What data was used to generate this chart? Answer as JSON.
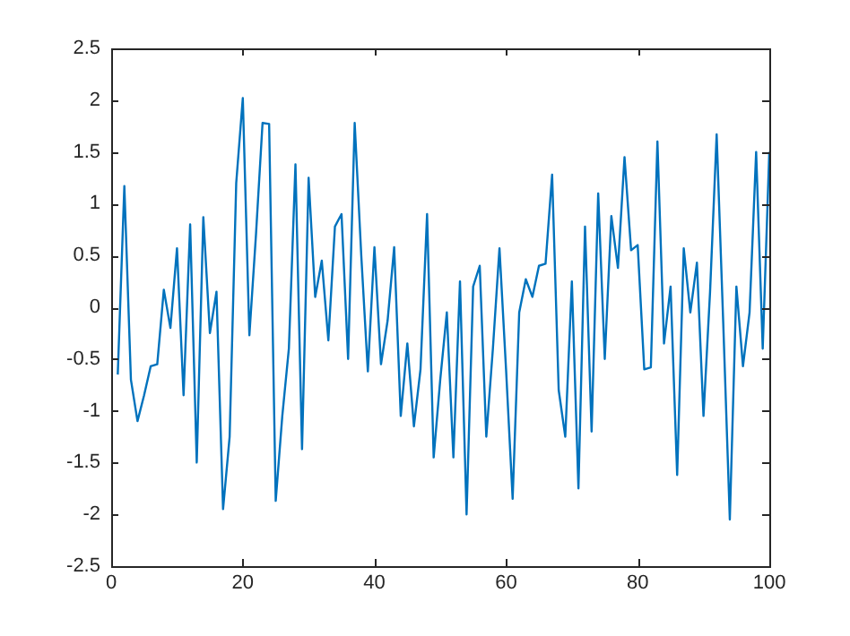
{
  "chart_data": {
    "type": "line",
    "x": [
      1,
      2,
      3,
      4,
      5,
      6,
      7,
      8,
      9,
      10,
      11,
      12,
      13,
      14,
      15,
      16,
      17,
      18,
      19,
      20,
      21,
      22,
      23,
      24,
      25,
      26,
      27,
      28,
      29,
      30,
      31,
      32,
      33,
      34,
      35,
      36,
      37,
      38,
      39,
      40,
      41,
      42,
      43,
      44,
      45,
      46,
      47,
      48,
      49,
      50,
      51,
      52,
      53,
      54,
      55,
      56,
      57,
      58,
      59,
      60,
      61,
      62,
      63,
      64,
      65,
      66,
      67,
      68,
      69,
      70,
      71,
      72,
      73,
      74,
      75,
      76,
      77,
      78,
      79,
      80,
      81,
      82,
      83,
      84,
      85,
      86,
      87,
      88,
      89,
      90,
      91,
      92,
      93,
      94,
      95,
      96,
      97,
      98,
      99,
      100
    ],
    "series": [
      {
        "color": "#0072bd",
        "values": [
          -0.65,
          1.17,
          -0.7,
          -1.1,
          -0.85,
          -0.57,
          -0.55,
          0.17,
          -0.2,
          0.57,
          -0.85,
          0.8,
          -1.5,
          0.87,
          -0.25,
          0.15,
          -1.95,
          -1.25,
          1.2,
          2.02,
          -0.27,
          0.7,
          1.78,
          1.77,
          -1.87,
          -1.05,
          -0.4,
          1.38,
          -1.37,
          1.25,
          0.1,
          0.45,
          -0.32,
          0.78,
          0.9,
          -0.5,
          1.78,
          0.5,
          -0.62,
          0.58,
          -0.55,
          -0.13,
          0.58,
          -1.05,
          -0.35,
          -1.15,
          -0.6,
          0.9,
          -1.45,
          -0.7,
          -0.05,
          -1.45,
          0.25,
          -2.0,
          0.2,
          0.4,
          -1.25,
          -0.4,
          0.57,
          -0.6,
          -1.85,
          -0.05,
          0.27,
          0.1,
          0.4,
          0.42,
          1.28,
          -0.8,
          -1.25,
          0.25,
          -1.75,
          0.78,
          -1.2,
          1.1,
          -0.5,
          0.88,
          0.38,
          1.45,
          0.55,
          0.6,
          -0.6,
          -0.58,
          1.6,
          -0.35,
          0.2,
          -1.62,
          0.57,
          -0.05,
          0.43,
          -1.05,
          0.15,
          1.67,
          -0.15,
          -2.05,
          0.2,
          -0.57,
          -0.05,
          1.5,
          -0.4,
          1.5
        ]
      }
    ],
    "xlim": [
      0,
      100
    ],
    "xticks": [
      0,
      20,
      40,
      60,
      80,
      100
    ],
    "ylim": [
      -2.5,
      2.5
    ],
    "yticks": [
      -2.5,
      -2,
      -1.5,
      -1,
      -0.5,
      0,
      0.5,
      1,
      1.5,
      2,
      2.5
    ],
    "grid": false,
    "legend": false,
    "marker": "none",
    "line_style": "solid"
  }
}
